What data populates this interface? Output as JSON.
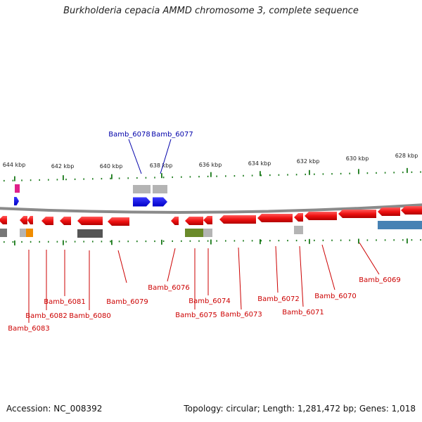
{
  "title": "Burkholderia cepacia AMMD chromosome 3, complete sequence",
  "footer": {
    "accession": "Accession: NC_008392",
    "summary": "Topology: circular; Length: 1,281,472 bp; Genes: 1,018"
  },
  "colors": {
    "gene": "#e41a1c",
    "gene_highlight": "#0000ff",
    "backbone": "#888888",
    "tick": "#1a7a1a",
    "label_bottom": "#cc0000",
    "label_top": "#0000aa",
    "pseudo": "#b4b4b4",
    "dark": "#555555",
    "olive": "#6a8a2a",
    "orange": "#f08c00",
    "magenta": "#e0208a",
    "steel": "#4682b4"
  },
  "kbp_ticks": [
    "644 kbp",
    "642 kbp",
    "640 kbp",
    "638 kbp",
    "636 kbp",
    "634 kbp",
    "632 kbp",
    "630 kbp",
    "628 kbp"
  ],
  "top_labels": [
    "Bamb_6078",
    "Bamb_6077"
  ],
  "bottom_labels": [
    "Bamb_6083",
    "Bamb_6082",
    "Bamb_6081",
    "Bamb_6080",
    "Bamb_6079",
    "Bamb_6076",
    "Bamb_6075",
    "Bamb_6074",
    "Bamb_6073",
    "Bamb_6072",
    "Bamb_6071",
    "Bamb_6070",
    "Bamb_6069"
  ]
}
